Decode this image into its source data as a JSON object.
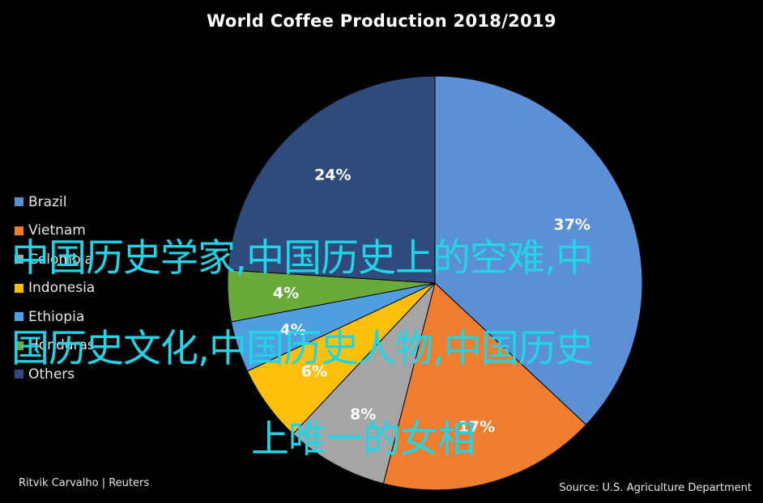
{
  "chart_data": {
    "type": "pie",
    "title": "World Coffee Production 2018/2019",
    "series": [
      {
        "name": "Brazil",
        "value": 37,
        "label": "37%",
        "color": "#5b8fd6"
      },
      {
        "name": "Vietnam",
        "value": 17,
        "label": "17%",
        "color": "#ee7d30"
      },
      {
        "name": "Colombia",
        "value": 8,
        "label": "8%",
        "color": "#a5a5a5"
      },
      {
        "name": "Indonesia",
        "value": 6,
        "label": "6%",
        "color": "#fdc00a"
      },
      {
        "name": "Ethiopia",
        "value": 4,
        "label": "4%",
        "color": "#4f9ee0"
      },
      {
        "name": "Honduras",
        "value": 4,
        "label": "4%",
        "color": "#6aaa3a"
      },
      {
        "name": "Others",
        "value": 24,
        "label": "24%",
        "color": "#2e4b7c"
      }
    ],
    "legend_position": "left"
  },
  "credits": {
    "author": "Ritvik Carvalho | Reuters",
    "source": "Source: U.S. Agriculture Department"
  },
  "overlay": {
    "line1": "中国历史学家,中国历史上的空难,中",
    "line2": "国历史文化,中国历史人物,中国历史",
    "line3": "上唯一的女相"
  }
}
